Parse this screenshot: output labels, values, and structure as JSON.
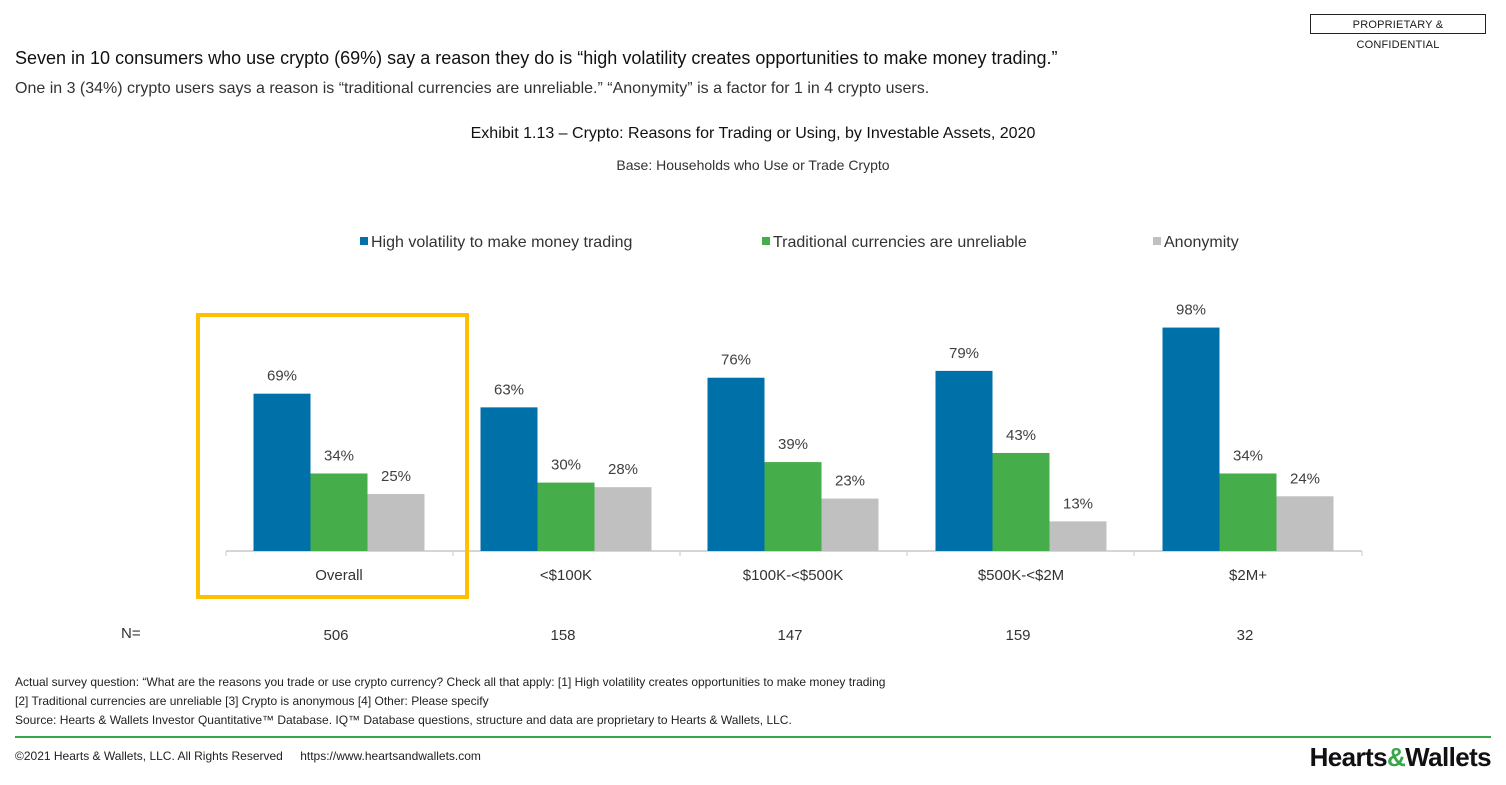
{
  "badge": "PROPRIETARY & CONFIDENTIAL",
  "headline": "Seven in 10 consumers who use crypto (69%) say a reason they do is “high volatility creates opportunities to make money trading.”",
  "subheadline": "One in 3 (34%) crypto users says a reason is “traditional currencies are unreliable.” “Anonymity” is a factor for 1 in 4 crypto users.",
  "chart_data": {
    "type": "bar",
    "title": "Exhibit 1.13 – Crypto: Reasons for Trading or Using, by Investable Assets, 2020",
    "subtitle": "Base: Households who Use or Trade Crypto",
    "categories": [
      "Overall",
      "<$100K",
      "$100K-<$500K",
      "$500K-<$2M",
      "$2M+"
    ],
    "series": [
      {
        "name": "High volatility to make money trading",
        "color": "#0070a8",
        "values": [
          69,
          63,
          76,
          79,
          98
        ]
      },
      {
        "name": "Traditional currencies are unreliable",
        "color": "#46ad4b",
        "values": [
          34,
          30,
          39,
          43,
          34
        ]
      },
      {
        "name": "Anonymity",
        "color": "#c0c0c0",
        "values": [
          25,
          28,
          23,
          13,
          24
        ]
      }
    ],
    "value_suffix": "%",
    "ylim": [
      0,
      100
    ],
    "legend_position": "top",
    "grid": false,
    "highlight_category": "Overall",
    "highlight_color": "#ffc000",
    "n_label": "N=",
    "n_values": [
      506,
      158,
      147,
      159,
      32
    ]
  },
  "footnotes": [
    "Actual survey question: “What are the reasons you trade or use crypto currency? Check all that apply: [1] High volatility creates opportunities to make money trading",
    "[2] Traditional currencies are unreliable  [3] Crypto is anonymous [4] Other: Please specify",
    "Source: Hearts & Wallets Investor Quantitative™ Database. IQ™ Database questions, structure and data are proprietary to Hearts & Wallets, LLC."
  ],
  "footer": {
    "copyright": "©2021 Hearts & Wallets, LLC. All Rights Reserved",
    "url": "https://www.heartsandwallets.com"
  },
  "logo": {
    "part1": "Hearts",
    "amp": "&",
    "part2": "Wallets"
  }
}
